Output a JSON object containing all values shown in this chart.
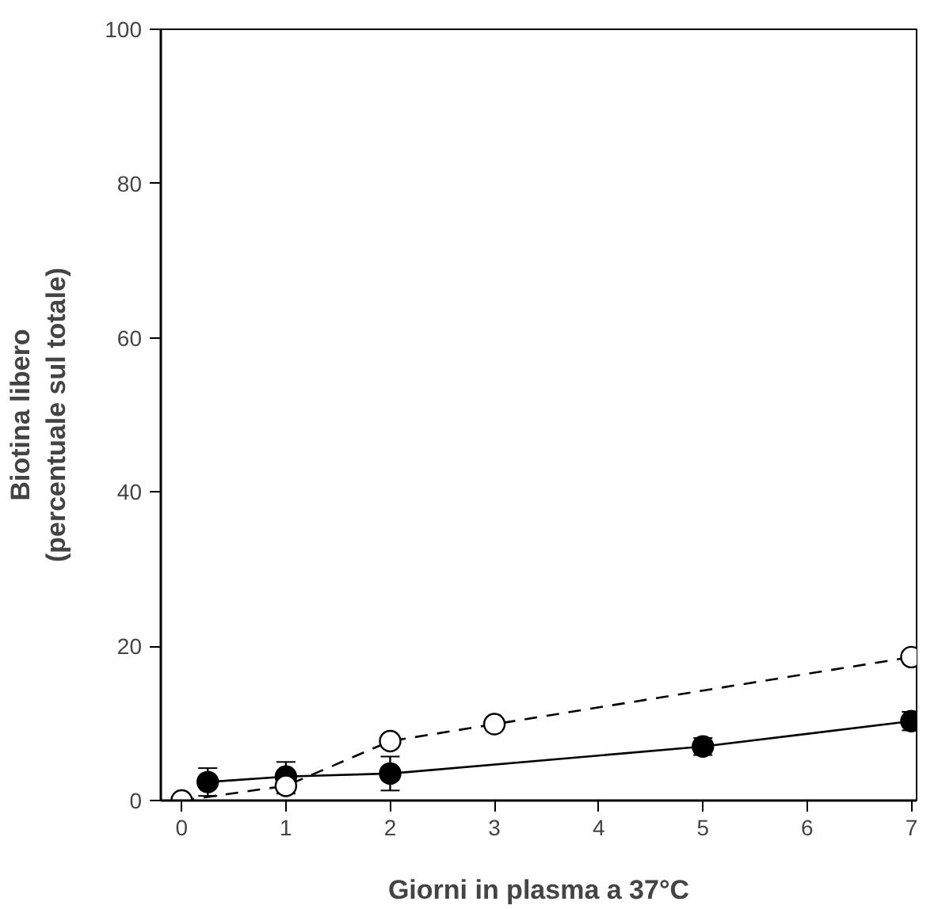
{
  "chart_data": {
    "type": "line",
    "xlabel": "Giorni in plasma a 37°C",
    "ylabel": "Biotina libero\n(percentuale sul totale)",
    "xlim": [
      -0.2,
      7.05
    ],
    "ylim": [
      0,
      100
    ],
    "xticks": [
      0,
      1,
      2,
      3,
      4,
      5,
      6,
      7
    ],
    "yticks": [
      0,
      20,
      40,
      60,
      80,
      100
    ],
    "grid": false,
    "series": [
      {
        "color": "#000000",
        "marker": "circle",
        "line_style": "solid",
        "x": [
          0.25,
          1,
          2,
          5,
          7
        ],
        "values": [
          2.4,
          3.1,
          3.5,
          7.0,
          10.3
        ],
        "errors": [
          1.8,
          1.9,
          2.2,
          1.1,
          1.2
        ]
      },
      {
        "color": "#000000",
        "marker": "circle",
        "line_style": "dashed",
        "x": [
          0,
          1,
          2,
          3,
          7
        ],
        "values": [
          0,
          1.9,
          7.7,
          9.9,
          18.6
        ],
        "errors": [
          null,
          1.0,
          null,
          null,
          null
        ]
      }
    ]
  }
}
